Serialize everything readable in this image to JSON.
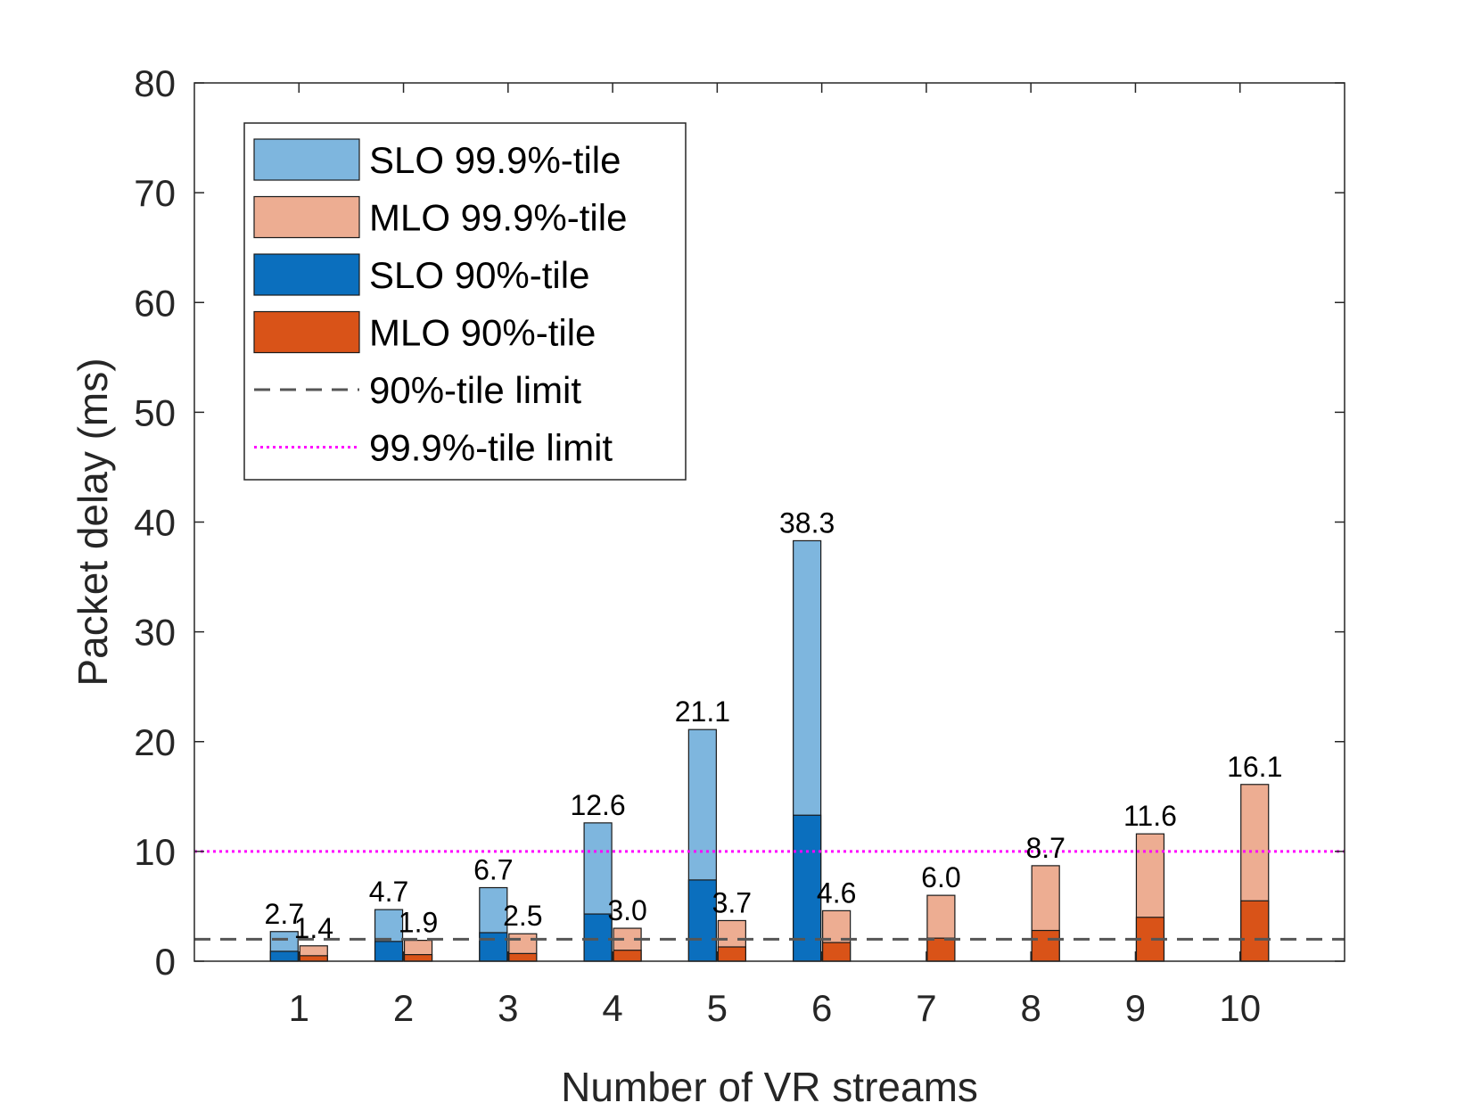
{
  "chart_data": {
    "type": "bar",
    "xlabel": "Number of VR streams",
    "ylabel": "Packet delay (ms)",
    "xlim": [
      0,
      11
    ],
    "ylim": [
      0,
      80
    ],
    "yticks": [
      0,
      10,
      20,
      30,
      40,
      50,
      60,
      70,
      80
    ],
    "categories": [
      "1",
      "2",
      "3",
      "4",
      "5",
      "6",
      "7",
      "8",
      "9",
      "10"
    ],
    "series": [
      {
        "name": "SLO 99.9%-tile",
        "color": "#7EB6DE",
        "group": "SLO",
        "values": [
          2.7,
          4.7,
          6.7,
          12.6,
          21.1,
          38.3,
          null,
          null,
          null,
          null
        ]
      },
      {
        "name": "MLO 99.9%-tile",
        "color": "#EDAD92",
        "group": "MLO",
        "values": [
          1.4,
          1.9,
          2.5,
          3.0,
          3.7,
          4.6,
          6.0,
          8.7,
          11.6,
          16.1
        ]
      },
      {
        "name": "SLO 90%-tile",
        "color": "#0B6FBE",
        "group": "SLO",
        "values": [
          0.9,
          1.8,
          2.6,
          4.3,
          7.4,
          13.3,
          null,
          null,
          null,
          null
        ]
      },
      {
        "name": "MLO 90%-tile",
        "color": "#D95318",
        "group": "MLO",
        "values": [
          0.5,
          0.6,
          0.7,
          1.0,
          1.3,
          1.7,
          2.1,
          2.8,
          4.0,
          5.5
        ]
      }
    ],
    "data_labels": {
      "SLO": [
        "2.7",
        "4.7",
        "6.7",
        "12.6",
        "21.1",
        "38.3",
        null,
        null,
        null,
        null
      ],
      "MLO": [
        "1.4",
        "1.9",
        "2.5",
        "3.0",
        "3.7",
        "4.6",
        "6.0",
        "8.7",
        "11.6",
        "16.1"
      ]
    },
    "reference_lines": [
      {
        "name": "90%-tile limit",
        "value": 2,
        "style": "dashed",
        "color": "#555555"
      },
      {
        "name": "99.9%-tile limit",
        "value": 10,
        "style": "dotted",
        "color": "#FF00FF"
      }
    ],
    "legend": {
      "position": "top-left",
      "entries": [
        {
          "label": "SLO 99.9%-tile",
          "kind": "patch",
          "color": "#7EB6DE"
        },
        {
          "label": "MLO 99.9%-tile",
          "kind": "patch",
          "color": "#EDAD92"
        },
        {
          "label": "SLO 90%-tile",
          "kind": "patch",
          "color": "#0B6FBE"
        },
        {
          "label": "MLO 90%-tile",
          "kind": "patch",
          "color": "#D95318"
        },
        {
          "label": "90%-tile limit",
          "kind": "dashed-line",
          "color": "#555555"
        },
        {
          "label": "99.9%-tile limit",
          "kind": "dotted-line",
          "color": "#FF00FF"
        }
      ]
    },
    "grid": false
  }
}
